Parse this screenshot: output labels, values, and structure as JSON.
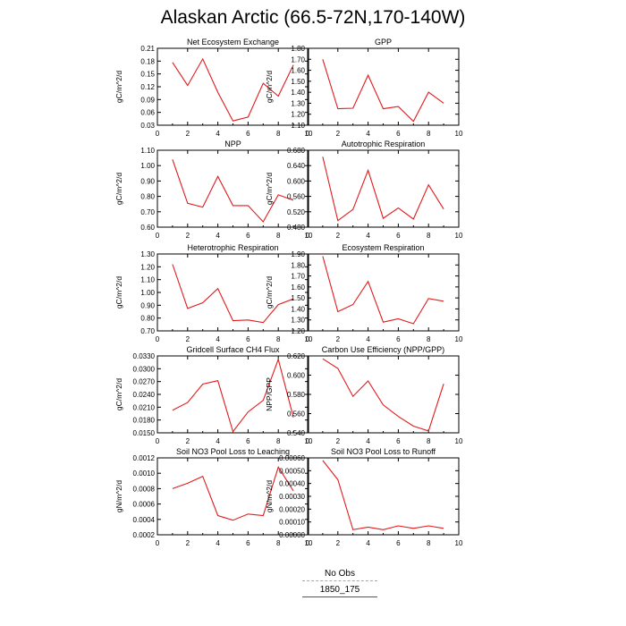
{
  "title": "Alaskan Arctic (66.5-72N,170-140W)",
  "colors": {
    "series": "#e31a1c",
    "no_obs": "#9a9cf5"
  },
  "legend": [
    {
      "label": "No Obs",
      "color": "#9a9cf5",
      "style": "dashed"
    },
    {
      "label": "1850_175",
      "color": "#e31a1c",
      "style": "solid"
    }
  ],
  "chart_data": [
    {
      "type": "line",
      "title": "Net Ecosystem Exchange",
      "ylabel": "gC/m^2/d",
      "xlim": [
        0,
        10
      ],
      "xticks": [
        0,
        2,
        4,
        6,
        8,
        10
      ],
      "ylim": [
        0.03,
        0.21
      ],
      "yticks": [
        "0.21",
        "0.18",
        "0.15",
        "0.12",
        "0.09",
        "0.06",
        "0.03"
      ],
      "x": [
        1,
        2,
        3,
        4,
        5,
        6,
        7,
        8,
        9
      ],
      "series": [
        {
          "name": "1850_175",
          "values": [
            0.177,
            0.123,
            0.185,
            0.107,
            0.04,
            0.049,
            0.128,
            0.098,
            0.171
          ]
        }
      ]
    },
    {
      "type": "line",
      "title": "GPP",
      "ylabel": "gC/m^2/d",
      "xlim": [
        0,
        10
      ],
      "xticks": [
        0,
        2,
        4,
        6,
        8,
        10
      ],
      "ylim": [
        1.1,
        1.8
      ],
      "yticks": [
        "1.80",
        "1.70",
        "1.60",
        "1.50",
        "1.40",
        "1.30",
        "1.20",
        "1.10"
      ],
      "x": [
        1,
        2,
        3,
        4,
        5,
        6,
        7,
        8,
        9
      ],
      "series": [
        {
          "name": "1850_175",
          "values": [
            1.7,
            1.25,
            1.255,
            1.555,
            1.25,
            1.27,
            1.135,
            1.4,
            1.3
          ]
        }
      ]
    },
    {
      "type": "line",
      "title": "NPP",
      "ylabel": "gC/m^2/d",
      "xlim": [
        0,
        10
      ],
      "xticks": [
        0,
        2,
        4,
        6,
        8,
        10
      ],
      "ylim": [
        0.6,
        1.1
      ],
      "yticks": [
        "1.10",
        "1.00",
        "0.90",
        "0.80",
        "0.70",
        "0.60"
      ],
      "x": [
        1,
        2,
        3,
        4,
        5,
        6,
        7,
        8,
        9
      ],
      "series": [
        {
          "name": "1850_175",
          "values": [
            1.04,
            0.755,
            0.73,
            0.93,
            0.74,
            0.74,
            0.635,
            0.81,
            0.775
          ]
        }
      ]
    },
    {
      "type": "line",
      "title": "Autotrophic Respiration",
      "ylabel": "gC/m^2/d",
      "xlim": [
        0,
        10
      ],
      "xticks": [
        0,
        2,
        4,
        6,
        8,
        10
      ],
      "ylim": [
        0.48,
        0.68
      ],
      "yticks": [
        "0.680",
        "0.640",
        "0.600",
        "0.560",
        "0.520",
        "0.480"
      ],
      "x": [
        1,
        2,
        3,
        4,
        5,
        6,
        7,
        8,
        9
      ],
      "series": [
        {
          "name": "1850_175",
          "values": [
            0.663,
            0.497,
            0.526,
            0.628,
            0.503,
            0.53,
            0.501,
            0.59,
            0.527
          ]
        }
      ]
    },
    {
      "type": "line",
      "title": "Heterotrophic Respiration",
      "ylabel": "gC/m^2/d",
      "xlim": [
        0,
        10
      ],
      "xticks": [
        0,
        2,
        4,
        6,
        8,
        10
      ],
      "ylim": [
        0.7,
        1.3
      ],
      "yticks": [
        "1.30",
        "1.20",
        "1.10",
        "1.00",
        "0.90",
        "0.80",
        "0.70"
      ],
      "x": [
        1,
        2,
        3,
        4,
        5,
        6,
        7,
        8,
        9
      ],
      "series": [
        {
          "name": "1850_175",
          "values": [
            1.22,
            0.875,
            0.92,
            1.03,
            0.78,
            0.785,
            0.765,
            0.905,
            0.95
          ]
        }
      ]
    },
    {
      "type": "line",
      "title": "Ecosystem Respiration",
      "ylabel": "gC/m^2/d",
      "xlim": [
        0,
        10
      ],
      "xticks": [
        0,
        2,
        4,
        6,
        8,
        10
      ],
      "ylim": [
        1.2,
        1.9
      ],
      "yticks": [
        "1.90",
        "1.80",
        "1.70",
        "1.60",
        "1.50",
        "1.40",
        "1.30",
        "1.20"
      ],
      "x": [
        1,
        2,
        3,
        4,
        5,
        6,
        7,
        8,
        9
      ],
      "series": [
        {
          "name": "1850_175",
          "values": [
            1.88,
            1.375,
            1.44,
            1.65,
            1.28,
            1.31,
            1.265,
            1.495,
            1.47
          ]
        }
      ]
    },
    {
      "type": "line",
      "title": "Gridcell Surface CH4 Flux",
      "ylabel": "gC/m^2/d",
      "xlim": [
        0,
        10
      ],
      "xticks": [
        0,
        2,
        4,
        6,
        8,
        10
      ],
      "ylim": [
        0.015,
        0.033
      ],
      "yticks": [
        "0.0330",
        "0.0300",
        "0.0270",
        "0.0240",
        "0.0210",
        "0.0180",
        "0.0150"
      ],
      "x": [
        1,
        2,
        3,
        4,
        5,
        6,
        7,
        8,
        9
      ],
      "series": [
        {
          "name": "1850_175",
          "values": [
            0.0203,
            0.0221,
            0.0264,
            0.0272,
            0.0153,
            0.0199,
            0.0226,
            0.0322,
            0.0186
          ]
        }
      ]
    },
    {
      "type": "line",
      "title": "Carbon Use Efficiency (NPP/GPP)",
      "ylabel": "NPP/GPP",
      "xlim": [
        0,
        10
      ],
      "xticks": [
        0,
        2,
        4,
        6,
        8,
        10
      ],
      "ylim": [
        0.54,
        0.62
      ],
      "yticks": [
        "0.620",
        "0.600",
        "0.580",
        "0.560",
        "0.540"
      ],
      "x": [
        1,
        2,
        3,
        4,
        5,
        6,
        7,
        8,
        9
      ],
      "series": [
        {
          "name": "1850_175",
          "values": [
            0.617,
            0.607,
            0.578,
            0.594,
            0.569,
            0.557,
            0.547,
            0.542,
            0.591
          ]
        }
      ]
    },
    {
      "type": "line",
      "title": "Soil NO3 Pool Loss to Leaching",
      "ylabel": "gN/m^2/d",
      "xlim": [
        0,
        10
      ],
      "xticks": [
        0,
        2,
        4,
        6,
        8,
        10
      ],
      "ylim": [
        0.0002,
        0.0012
      ],
      "yticks": [
        "0.0012",
        "0.0010",
        "0.0008",
        "0.0006",
        "0.0004",
        "0.0002"
      ],
      "x": [
        1,
        2,
        3,
        4,
        5,
        6,
        7,
        8,
        9
      ],
      "series": [
        {
          "name": "1850_175",
          "values": [
            0.0008,
            0.00087,
            0.00096,
            0.00045,
            0.00039,
            0.00047,
            0.00045,
            0.00108,
            0.00077
          ]
        }
      ]
    },
    {
      "type": "line",
      "title": "Soil NO3 Pool Loss to Runoff",
      "ylabel": "gN/m^2/d",
      "xlim": [
        0,
        10
      ],
      "xticks": [
        0,
        2,
        4,
        6,
        8,
        10
      ],
      "ylim": [
        0.0,
        0.0006
      ],
      "yticks": [
        "0.00060",
        "0.00050",
        "0.00040",
        "0.00030",
        "0.00020",
        "0.00010",
        "0.00000"
      ],
      "x": [
        1,
        2,
        3,
        4,
        5,
        6,
        7,
        8,
        9
      ],
      "series": [
        {
          "name": "1850_175",
          "values": [
            0.00058,
            0.00043,
            4e-05,
            6e-05,
            4e-05,
            7e-05,
            5e-05,
            7e-05,
            5e-05
          ]
        }
      ]
    }
  ]
}
